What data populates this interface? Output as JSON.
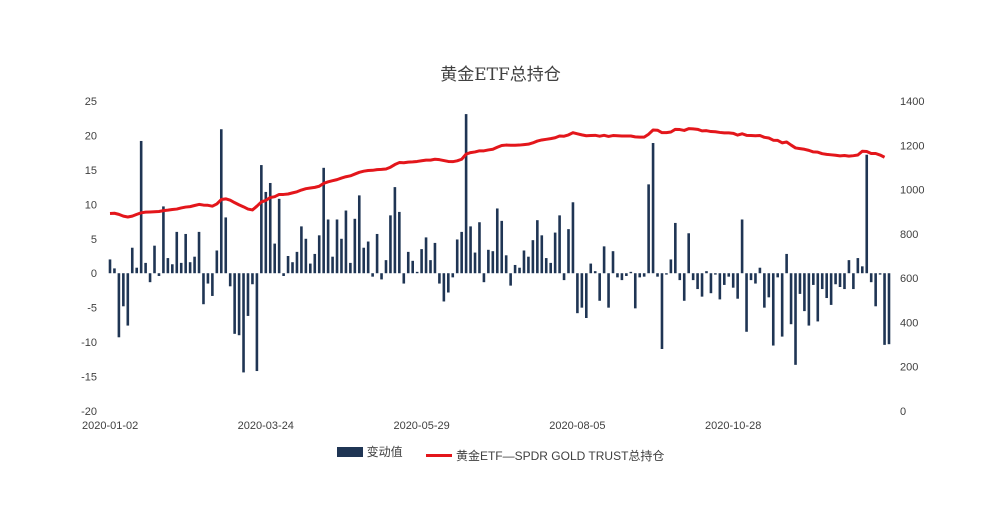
{
  "chart_data": {
    "type": "bar+line",
    "title": "黄金ETF总持仓",
    "left_axis": {
      "ticks": [
        "25",
        "20",
        "15",
        "10",
        "5",
        "0",
        "-5",
        "-10",
        "-15",
        "-20"
      ],
      "min": -20,
      "max": 25
    },
    "right_axis": {
      "ticks": [
        "1400",
        "1200",
        "1000",
        "800",
        "600",
        "400",
        "200",
        "0"
      ],
      "min": 0,
      "max": 1400
    },
    "x_labels": [
      "2020-01-02",
      "2020-03-24",
      "2020-05-29",
      "2020-08-05",
      "2020-10-28"
    ],
    "x_label_index": [
      0,
      35,
      70,
      105,
      140
    ],
    "legend": {
      "bar": "变动值",
      "line": "黄金ETF—SPDR GOLD TRUST总持仓"
    },
    "colors": {
      "bar": "#1f3554",
      "line": "#e3161b"
    },
    "bar_series": {
      "name": "变动值",
      "values": [
        2,
        0.7,
        -9.3,
        -4.8,
        -7.6,
        3.7,
        0.8,
        19.2,
        1.5,
        -1.3,
        4.0,
        -0.4,
        9.7,
        2.2,
        1.3,
        6.0,
        1.5,
        5.7,
        1.6,
        2.4,
        6.0,
        -4.5,
        -1.5,
        -3.3,
        3.3,
        20.9,
        8.1,
        -1.9,
        -8.8,
        -9.0,
        -14.4,
        -6.2,
        -1.6,
        -14.2,
        15.7,
        11.8,
        13.1,
        4.3,
        10.8,
        -0.4,
        2.5,
        1.6,
        3.1,
        6.8,
        5.0,
        1.4,
        2.8,
        5.5,
        15.3,
        7.8,
        2.4,
        7.8,
        5.0,
        9.1,
        1.5,
        7.9,
        11.3,
        3.7,
        4.6,
        -0.5,
        5.7,
        -0.9,
        1.9,
        8.4,
        12.5,
        8.9,
        -1.5,
        3.1,
        1.8,
        0.2,
        3.5,
        5.2,
        1.9,
        4.4,
        -1.5,
        -4.1,
        -2.8,
        -0.6,
        4.9,
        6.0,
        23.1,
        6.8,
        3.0,
        7.4,
        -1.3,
        3.4,
        3.2,
        9.4,
        7.6,
        2.6,
        -1.8,
        1.2,
        0.8,
        3.3,
        2.4,
        4.8,
        7.7,
        5.5,
        2.2,
        1.5,
        5.9,
        8.4,
        -1.0,
        6.4,
        10.3,
        -5.8,
        -5.0,
        -6.5,
        1.4,
        0.3,
        -4.0,
        3.9,
        -5.0,
        3.2,
        -0.6,
        -1.0,
        -0.4,
        0.2,
        -5.1,
        -0.6,
        -0.5,
        12.9,
        18.9,
        -0.5,
        -11.0,
        -0.2,
        2.0,
        7.3,
        -1.0,
        -4.0,
        5.8,
        -1.0,
        -2.3,
        -3.4,
        0.3,
        -2.9,
        -0.2,
        -3.8,
        -1.7,
        -0.5,
        -2.1,
        -3.7,
        7.8,
        -8.5,
        -1.0,
        -1.5,
        0.8,
        -5.0,
        -3.5,
        -10.5,
        -0.6,
        -9.2,
        2.8,
        -7.4,
        -13.3,
        -3.0,
        -5.5,
        -7.6,
        -1.7,
        -7.0,
        -2.3,
        -3.6,
        -4.6,
        -1.6,
        -2.0,
        -2.3,
        1.9,
        -2.3,
        2.2,
        1.0,
        17.2,
        -1.3,
        -4.8,
        -0.2,
        -10.4,
        -10.3
      ]
    },
    "line_series": {
      "name": "黄金ETF—SPDR GOLD TRUST总持仓",
      "values": [
        892,
        893,
        888,
        880,
        876,
        880,
        888,
        895,
        898,
        899,
        900,
        901,
        905,
        907,
        910,
        912,
        917,
        921,
        923,
        928,
        933,
        930,
        929,
        925,
        935,
        955,
        958,
        952,
        941,
        931,
        922,
        912,
        908,
        925,
        944,
        951,
        964,
        968,
        978,
        978,
        980,
        985,
        990,
        998,
        1004,
        1007,
        1010,
        1015,
        1028,
        1035,
        1040,
        1045,
        1052,
        1058,
        1062,
        1070,
        1078,
        1083,
        1086,
        1087,
        1090,
        1091,
        1093,
        1101,
        1113,
        1122,
        1121,
        1124,
        1125,
        1127,
        1130,
        1133,
        1133,
        1137,
        1135,
        1131,
        1127,
        1126,
        1130,
        1137,
        1160,
        1167,
        1170,
        1175,
        1175,
        1179,
        1182,
        1191,
        1199,
        1201,
        1200,
        1200,
        1201,
        1203,
        1205,
        1211,
        1219,
        1224,
        1227,
        1230,
        1234,
        1242,
        1241,
        1247,
        1257,
        1252,
        1247,
        1243,
        1244,
        1245,
        1241,
        1245,
        1240,
        1244,
        1243,
        1242,
        1242,
        1242,
        1238,
        1237,
        1237,
        1250,
        1269,
        1268,
        1257,
        1257,
        1260,
        1272,
        1271,
        1267,
        1275,
        1274,
        1272,
        1265,
        1266,
        1262,
        1261,
        1258,
        1256,
        1256,
        1254,
        1246,
        1252,
        1245,
        1244,
        1243,
        1244,
        1236,
        1233,
        1223,
        1222,
        1211,
        1215,
        1201,
        1188,
        1185,
        1182,
        1177,
        1170,
        1169,
        1162,
        1159,
        1157,
        1155,
        1152,
        1154,
        1151,
        1153,
        1156,
        1173,
        1172,
        1163,
        1163,
        1156,
        1146
      ]
    }
  }
}
